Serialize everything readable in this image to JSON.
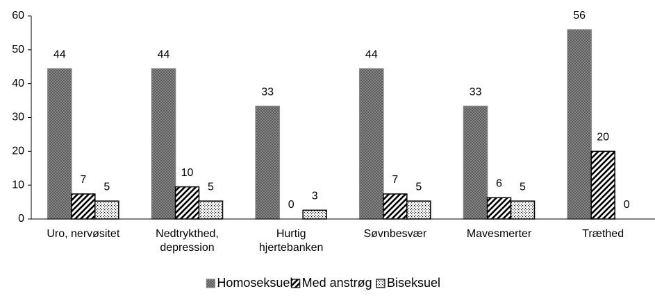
{
  "chart_data": {
    "type": "bar",
    "categories": [
      [
        "Uro, nervøsitet"
      ],
      [
        "Nedtrykthed,",
        "depression"
      ],
      [
        "Hurtig",
        "hjertebanken"
      ],
      [
        "Søvnbesvær"
      ],
      [
        "Mavesmerter"
      ],
      [
        "Træthed"
      ]
    ],
    "series": [
      {
        "name": "Homoseksuel",
        "color": "#7f7f7f",
        "pattern": "crosshatch",
        "values": [
          44.4,
          44.4,
          33.3,
          44.4,
          33.3,
          55.9
        ],
        "value_labels": [
          "44",
          "44",
          "33",
          "44",
          "33",
          "56"
        ]
      },
      {
        "name": "Med anstrøg",
        "color": "#000000",
        "pattern": "diagonal",
        "values": [
          7.4,
          9.5,
          0,
          7.4,
          6.3,
          20
        ],
        "value_labels": [
          "7",
          "10",
          "0",
          "7",
          "6",
          "20"
        ]
      },
      {
        "name": "Biseksuel",
        "color": "#000000",
        "pattern": "dots",
        "values": [
          5.3,
          5.3,
          2.6,
          5.3,
          5.3,
          0
        ],
        "value_labels": [
          "5",
          "5",
          "3",
          "5",
          "5",
          "0"
        ]
      }
    ],
    "ylim": [
      0,
      60
    ],
    "yticks": [
      0,
      10,
      20,
      30,
      40,
      50,
      60
    ],
    "grid": false,
    "legend": "bottom"
  }
}
